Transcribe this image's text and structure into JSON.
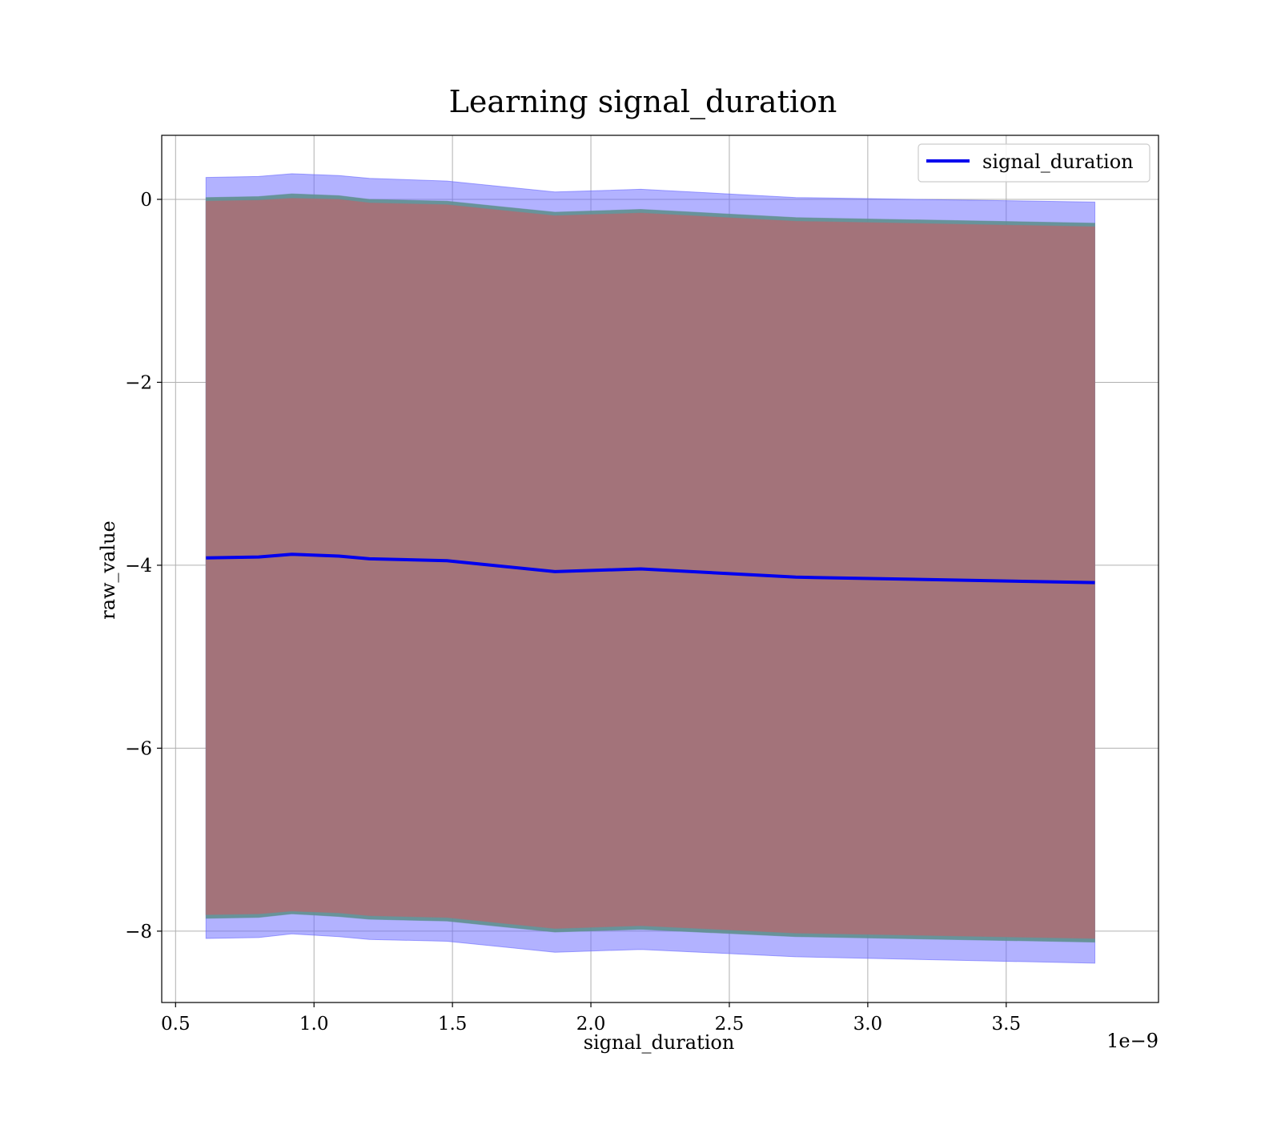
{
  "chart_data": {
    "type": "line",
    "title": "Learning signal_duration",
    "xlabel": "signal_duration",
    "ylabel": "raw_value",
    "x_offset_text": "1e−9",
    "xlim": [
      0.45,
      4.05
    ],
    "ylim": [
      -8.78,
      0.7
    ],
    "x_ticks": [
      0.5,
      1.0,
      1.5,
      2.0,
      2.5,
      3.0,
      3.5
    ],
    "x_tick_labels": [
      "0.5",
      "1.0",
      "1.5",
      "2.0",
      "2.5",
      "3.0",
      "3.5"
    ],
    "y_ticks": [
      0,
      -2,
      -4,
      -6,
      -8
    ],
    "y_tick_labels": [
      "0",
      "−2",
      "−4",
      "−6",
      "−8"
    ],
    "grid": true,
    "legend_position": "top-right",
    "x": [
      0.61,
      0.8,
      0.92,
      1.09,
      1.2,
      1.48,
      1.87,
      2.18,
      2.74,
      3.82
    ],
    "series": [
      {
        "name": "signal_duration",
        "color": "#0000ee",
        "values": [
          -3.92,
          -3.91,
          -3.88,
          -3.9,
          -3.93,
          -3.95,
          -4.07,
          -4.04,
          -4.13,
          -4.19
        ]
      }
    ],
    "bands": [
      {
        "role": "outer",
        "color": "#6666ff",
        "opacity": 0.5,
        "upper": [
          0.24,
          0.25,
          0.28,
          0.26,
          0.23,
          0.2,
          0.08,
          0.11,
          0.02,
          -0.03
        ],
        "lower": [
          -8.08,
          -8.07,
          -8.03,
          -8.06,
          -8.09,
          -8.11,
          -8.23,
          -8.2,
          -8.28,
          -8.35
        ]
      },
      {
        "role": "middle",
        "color": "#5f8f8f",
        "opacity": 0.9,
        "upper": [
          0.02,
          0.03,
          0.06,
          0.04,
          0.0,
          -0.02,
          -0.14,
          -0.11,
          -0.2,
          -0.26
        ],
        "lower": [
          -7.86,
          -7.85,
          -7.81,
          -7.84,
          -7.87,
          -7.89,
          -8.01,
          -7.98,
          -8.06,
          -8.12
        ]
      },
      {
        "role": "inner",
        "color": "#a3737a",
        "opacity": 1.0,
        "upper": [
          -0.02,
          -0.01,
          0.01,
          0.0,
          -0.04,
          -0.06,
          -0.18,
          -0.15,
          -0.24,
          -0.3
        ],
        "lower": [
          -7.82,
          -7.81,
          -7.78,
          -7.8,
          -7.83,
          -7.85,
          -7.97,
          -7.94,
          -8.02,
          -8.08
        ]
      }
    ]
  }
}
